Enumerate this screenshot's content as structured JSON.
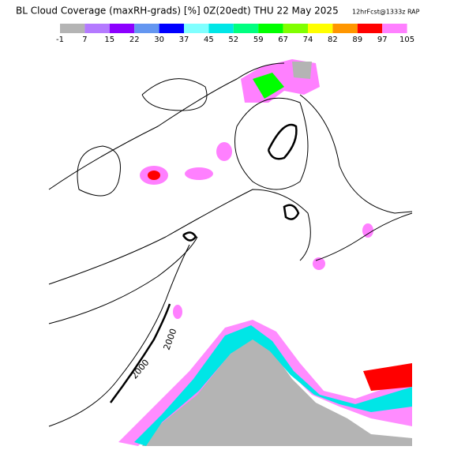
{
  "title": "BL Cloud Coverage (maxRH-grads) [%] 0Z(20edt) THU 22 May 2025",
  "subtitle": "12hrFcst@1333z RAP",
  "colorbar": {
    "labels": [
      -1,
      7,
      15,
      22,
      30,
      37,
      45,
      52,
      59,
      67,
      74,
      82,
      89,
      97,
      105
    ],
    "colors": [
      "#b4b4b4",
      "#b47aff",
      "#8c00ff",
      "#6496f0",
      "#0000ff",
      "#80ffff",
      "#00e6e6",
      "#00ff80",
      "#00ff00",
      "#80ff00",
      "#ffff00",
      "#ff9600",
      "#ff0000",
      "#ff80ff"
    ]
  },
  "contour_labels": [
    "2000",
    "2000"
  ]
}
